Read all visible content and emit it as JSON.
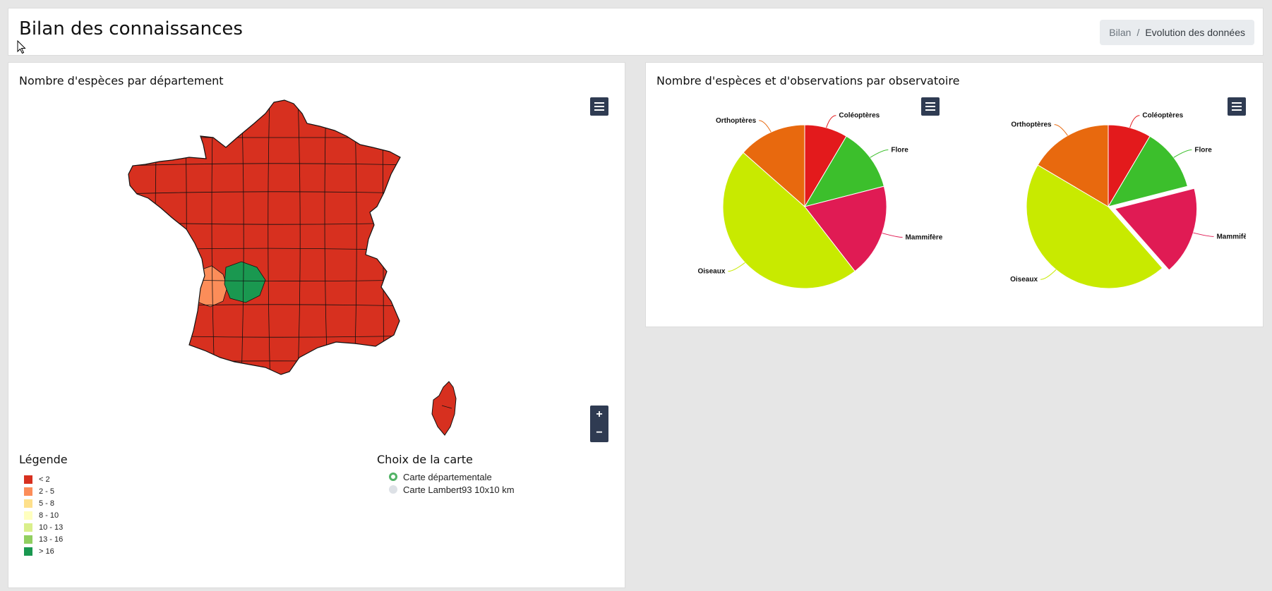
{
  "header": {
    "title": "Bilan des connaissances",
    "breadcrumb": {
      "link": "Bilan",
      "separator": "/",
      "current": "Evolution des données"
    }
  },
  "map_panel": {
    "title": "Nombre d'espèces par département",
    "zoom_in": "+",
    "zoom_out": "−",
    "legend_title": "Légende",
    "legend": [
      {
        "label": "< 2",
        "color": "#d7301f"
      },
      {
        "label": "2 - 5",
        "color": "#fc8d59"
      },
      {
        "label": "5 - 8",
        "color": "#fee08b"
      },
      {
        "label": "8 - 10",
        "color": "#ffffbf"
      },
      {
        "label": "10 - 13",
        "color": "#d9ef8b"
      },
      {
        "label": "13 - 16",
        "color": "#91cf60"
      },
      {
        "label": "> 16",
        "color": "#1a9850"
      }
    ],
    "choice_title": "Choix de la carte",
    "choices": [
      {
        "label": "Carte départementale",
        "selected": true
      },
      {
        "label": "Carte Lambert93 10x10 km",
        "selected": false
      }
    ]
  },
  "pie_panel": {
    "title": "Nombre d'espèces et d'observations par observatoire"
  },
  "chart_data": [
    {
      "type": "pie",
      "title": "",
      "categories": [
        "Coléoptères",
        "Flore",
        "Mammifères",
        "Oiseaux",
        "Orthoptères"
      ],
      "values": [
        8.5,
        12.5,
        18.5,
        47,
        13.5
      ],
      "colors": [
        "#e31a1c",
        "#3cbf2c",
        "#e01b54",
        "#c8ea00",
        "#e8690e"
      ],
      "exploded": []
    },
    {
      "type": "pie",
      "title": "",
      "categories": [
        "Coléoptères",
        "Flore",
        "Mammifères",
        "Oiseaux",
        "Orthoptères"
      ],
      "values": [
        8.5,
        12.5,
        17.5,
        45,
        16.5
      ],
      "colors": [
        "#e31a1c",
        "#3cbf2c",
        "#e01b54",
        "#c8ea00",
        "#e8690e"
      ],
      "exploded": [
        "Mammifères"
      ]
    }
  ]
}
